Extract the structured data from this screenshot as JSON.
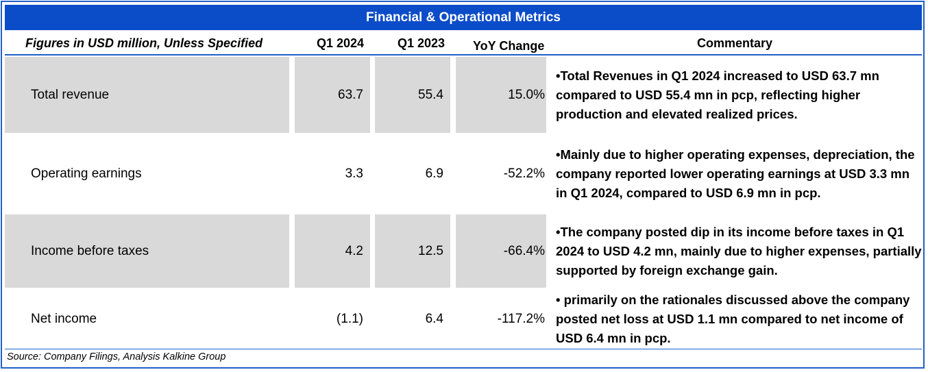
{
  "title": "Financial & Operational Metrics",
  "header": {
    "label": "Figures in USD million, Unless Specified",
    "col1": "Q1 2024",
    "col2": "Q1 2023",
    "col3": "YoY Change",
    "col4": "Commentary"
  },
  "rows": [
    {
      "label": "Total revenue",
      "q1_2024": "63.7",
      "q1_2023": "55.4",
      "yoy": "15.0%",
      "commentary": "•Total Revenues in Q1 2024 increased to USD 63.7 mn compared to USD 55.4 mn in pcp, reflecting higher production and elevated realized prices."
    },
    {
      "label": "Operating earnings",
      "q1_2024": "3.3",
      "q1_2023": "6.9",
      "yoy": "-52.2%",
      "commentary": "•Mainly due to higher operating expenses, depreciation, the company reported lower operating earnings at USD 3.3 mn in Q1 2024, compared to USD 6.9 mn in pcp."
    },
    {
      "label": "Income before taxes",
      "q1_2024": "4.2",
      "q1_2023": "12.5",
      "yoy": "-66.4%",
      "commentary": "•The company posted dip in its income before taxes in Q1 2024 to USD 4.2 mn, mainly due to higher expenses, partially supported by foreign exchange gain."
    },
    {
      "label": "Net income",
      "q1_2024": "(1.1)",
      "q1_2023": "6.4",
      "yoy": "-117.2%",
      "commentary": "• primarily on the rationales discussed above the company posted net loss at USD 1.1 mn compared to net income of USD 6.4 mn in pcp."
    }
  ],
  "source": "Source: Company Filings, Analysis Kalkine Group",
  "colors": {
    "accent": "#0b4cc8",
    "shade": "#d9d9d9",
    "border": "#1f5fc9"
  }
}
